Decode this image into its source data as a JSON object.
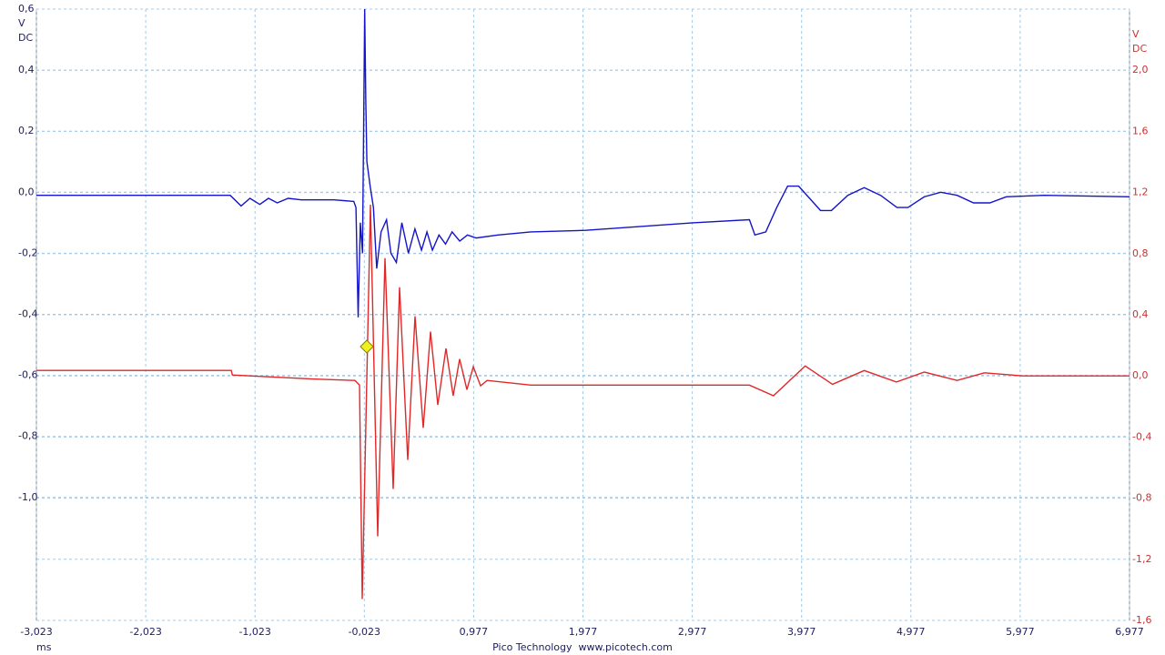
{
  "chart_data": {
    "type": "line",
    "x_unit": "ms",
    "footer": "Pico Technology  www.picotech.com",
    "y_unit": "V",
    "y_coupling": "DC",
    "y2_unit": "V",
    "y2_coupling": "DC",
    "grid": true,
    "xlim": [
      -3.023,
      6.977
    ],
    "xticks": [
      {
        "value": -3.023,
        "label": "-3,023"
      },
      {
        "value": -2.023,
        "label": "-2,023"
      },
      {
        "value": -1.023,
        "label": "-1,023"
      },
      {
        "value": -0.023,
        "label": "-0,023"
      },
      {
        "value": 0.977,
        "label": "0,977"
      },
      {
        "value": 1.977,
        "label": "1,977"
      },
      {
        "value": 2.977,
        "label": "2,977"
      },
      {
        "value": 3.977,
        "label": "3,977"
      },
      {
        "value": 4.977,
        "label": "4,977"
      },
      {
        "value": 5.977,
        "label": "5,977"
      },
      {
        "value": 6.977,
        "label": "6,977"
      }
    ],
    "ylim": [
      -1.403,
      0.6
    ],
    "yticks": [
      {
        "value": 0.6,
        "label": "0,6"
      },
      {
        "value": 0.4,
        "label": "0,4"
      },
      {
        "value": 0.2,
        "label": "0,2"
      },
      {
        "value": 0.0,
        "label": "0,0"
      },
      {
        "value": -0.2,
        "label": "-0,2"
      },
      {
        "value": -0.4,
        "label": "-0,4"
      },
      {
        "value": -0.6,
        "label": "-0,6"
      },
      {
        "value": -0.8,
        "label": "-0,8"
      },
      {
        "value": -1.0,
        "label": "-1,0"
      }
    ],
    "y2lim": [
      -1.6,
      2.4
    ],
    "y2ticks": [
      {
        "value": 2.0,
        "label": "2,0"
      },
      {
        "value": 1.6,
        "label": "1,6"
      },
      {
        "value": 1.2,
        "label": "1,2"
      },
      {
        "value": 0.8,
        "label": "0,8"
      },
      {
        "value": 0.4,
        "label": "0,4"
      },
      {
        "value": 0.0,
        "label": "0,0"
      },
      {
        "value": -0.4,
        "label": "-0,4"
      },
      {
        "value": -0.8,
        "label": "-0,8"
      },
      {
        "value": -1.2,
        "label": "-1,2"
      },
      {
        "value": -1.6,
        "label": "-1,6"
      }
    ],
    "series": [
      {
        "color": "#1414c8",
        "axis": "y",
        "x": [
          -3.023,
          -1.5,
          -1.25,
          -1.15,
          -1.07,
          -0.98,
          -0.9,
          -0.82,
          -0.72,
          -0.6,
          -0.3,
          -0.12,
          -0.1,
          -0.08,
          -0.06,
          -0.04,
          -0.02,
          -0.01,
          0.0,
          0.03,
          0.06,
          0.09,
          0.13,
          0.18,
          0.22,
          0.27,
          0.32,
          0.38,
          0.44,
          0.5,
          0.55,
          0.6,
          0.66,
          0.72,
          0.78,
          0.85,
          0.92,
          1.0,
          1.2,
          1.5,
          2.0,
          3.0,
          3.5,
          3.55,
          3.65,
          3.75,
          3.85,
          3.95,
          4.05,
          4.15,
          4.25,
          4.4,
          4.55,
          4.7,
          4.85,
          4.95,
          5.1,
          5.25,
          5.4,
          5.55,
          5.7,
          5.85,
          6.2,
          6.977
        ],
        "values": [
          -0.01,
          -0.01,
          -0.01,
          -0.045,
          -0.02,
          -0.04,
          -0.02,
          -0.035,
          -0.02,
          -0.025,
          -0.025,
          -0.03,
          -0.05,
          -0.41,
          -0.1,
          -0.2,
          0.6,
          0.3,
          0.1,
          0.02,
          -0.05,
          -0.25,
          -0.13,
          -0.09,
          -0.2,
          -0.23,
          -0.1,
          -0.2,
          -0.12,
          -0.19,
          -0.13,
          -0.19,
          -0.14,
          -0.17,
          -0.13,
          -0.16,
          -0.14,
          -0.15,
          -0.14,
          -0.13,
          -0.125,
          -0.1,
          -0.09,
          -0.14,
          -0.13,
          -0.05,
          0.02,
          0.02,
          -0.02,
          -0.06,
          -0.06,
          -0.01,
          0.015,
          -0.01,
          -0.05,
          -0.05,
          -0.015,
          0.0,
          -0.01,
          -0.035,
          -0.035,
          -0.015,
          -0.01,
          -0.015
        ]
      },
      {
        "color": "#e02828",
        "axis": "y2",
        "x": [
          -3.023,
          -1.24,
          -1.23,
          -0.5,
          -0.109,
          -0.067,
          -0.042,
          0.033,
          0.099,
          0.166,
          0.241,
          0.299,
          0.374,
          0.441,
          0.516,
          0.582,
          0.649,
          0.724,
          0.79,
          0.849,
          0.915,
          0.974,
          1.04,
          1.1,
          1.5,
          3.5,
          3.72,
          4.01,
          4.26,
          4.55,
          4.845,
          5.1,
          5.4,
          5.65,
          6.0,
          6.977
        ],
        "values": [
          0.036,
          0.036,
          0.006,
          -0.02,
          -0.03,
          -0.06,
          -1.46,
          1.12,
          -1.05,
          0.77,
          -0.74,
          0.58,
          -0.55,
          0.39,
          -0.34,
          0.29,
          -0.19,
          0.18,
          -0.13,
          0.11,
          -0.09,
          0.06,
          -0.065,
          -0.03,
          -0.06,
          -0.06,
          -0.13,
          0.065,
          -0.055,
          0.035,
          -0.04,
          0.025,
          -0.03,
          0.02,
          0.0,
          0.0
        ]
      }
    ]
  }
}
